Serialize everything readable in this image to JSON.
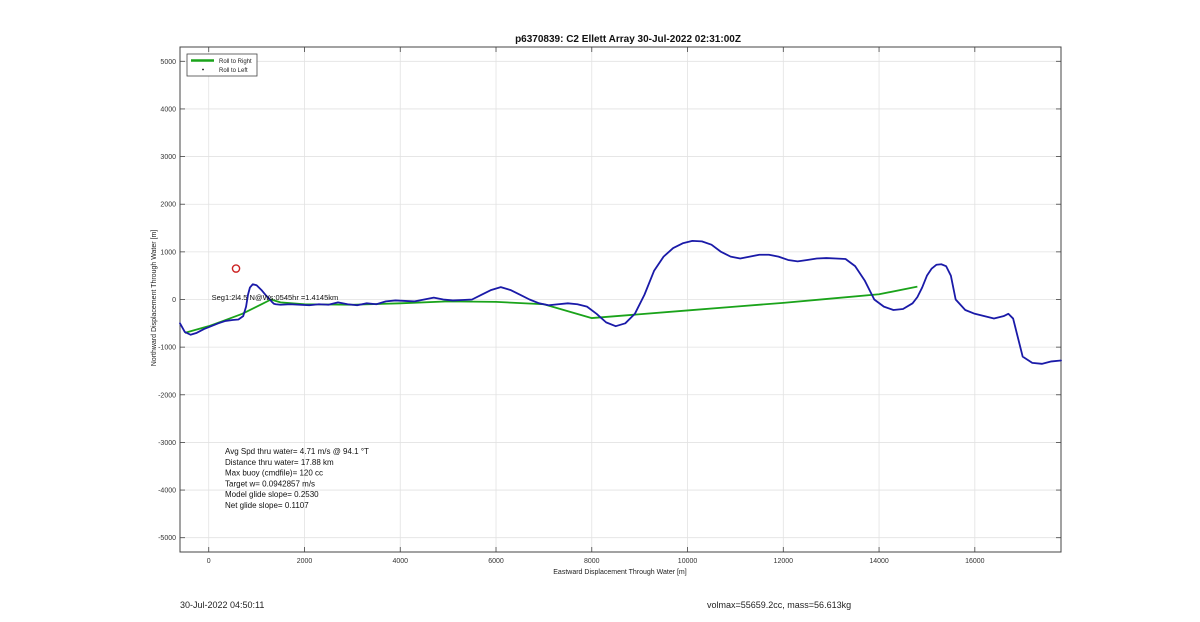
{
  "chart_data": {
    "type": "line",
    "title": "p6370839: C2 Ellett Array 30-Jul-2022 02:31:00Z",
    "xlabel": "Eastward Displacement Through Water [m]",
    "ylabel": "Northward Displacement Through Water [m]",
    "xlim": [
      -600,
      17800
    ],
    "ylim": [
      -5300,
      5300
    ],
    "x_ticks": [
      0,
      2000,
      4000,
      6000,
      8000,
      10000,
      12000,
      14000,
      16000
    ],
    "y_ticks": [
      -5000,
      -4000,
      -3000,
      -2000,
      -1000,
      0,
      1000,
      2000,
      3000,
      4000,
      5000
    ],
    "grid": true,
    "legend_placement": "top-left",
    "legend": [
      {
        "label": "Roll to Right",
        "color": "#1aa31a",
        "style": "line"
      },
      {
        "label": "Roll to Left",
        "color": "#111111",
        "style": "dot"
      }
    ],
    "series": [
      {
        "color": "#1a1aa8",
        "x": [
          -600,
          -500,
          -380,
          -250,
          -100,
          50,
          200,
          350,
          500,
          620,
          720,
          780,
          820,
          860,
          920,
          1000,
          1100,
          1200,
          1280,
          1320,
          1360,
          1400,
          1500,
          1700,
          1900,
          2100,
          2300,
          2500,
          2700,
          2900,
          3100,
          3300,
          3500,
          3700,
          3900,
          4100,
          4300,
          4500,
          4700,
          4900,
          5100,
          5300,
          5500,
          5700,
          5900,
          6100,
          6300,
          6500,
          6700,
          6900,
          7100,
          7300,
          7500,
          7700,
          7900,
          8100,
          8300,
          8500,
          8700,
          8900,
          9100,
          9300,
          9500,
          9700,
          9900,
          10100,
          10300,
          10500,
          10700,
          10900,
          11100,
          11300,
          11500,
          11700,
          11900,
          12100,
          12300,
          12500,
          12700,
          12900,
          13100,
          13300,
          13500,
          13700,
          13900,
          14100,
          14300,
          14500,
          14700,
          14800,
          14900,
          15000,
          15100,
          15200,
          15300,
          15400,
          15500,
          15600,
          15800,
          16000,
          16200,
          16400,
          16600,
          16700,
          16800,
          16900,
          17000,
          17200,
          17400,
          17600,
          17800
        ],
        "y": [
          -500,
          -680,
          -740,
          -700,
          -620,
          -560,
          -500,
          -450,
          -430,
          -420,
          -350,
          -150,
          100,
          250,
          320,
          300,
          200,
          80,
          0,
          -50,
          -90,
          -100,
          -110,
          -100,
          -110,
          -120,
          -100,
          -110,
          -60,
          -100,
          -120,
          -80,
          -100,
          -40,
          -20,
          -30,
          -40,
          0,
          40,
          0,
          -20,
          -10,
          0,
          100,
          200,
          260,
          200,
          100,
          0,
          -80,
          -120,
          -100,
          -80,
          -100,
          -150,
          -300,
          -480,
          -560,
          -500,
          -300,
          100,
          600,
          900,
          1080,
          1180,
          1230,
          1220,
          1150,
          1000,
          900,
          860,
          900,
          940,
          940,
          900,
          830,
          800,
          830,
          860,
          870,
          860,
          850,
          700,
          400,
          0,
          -150,
          -220,
          -200,
          -80,
          50,
          250,
          500,
          650,
          730,
          740,
          700,
          500,
          0,
          -220,
          -300,
          -350,
          -400,
          -350,
          -300,
          -400,
          -800,
          -1200,
          -1330,
          -1350,
          -1300,
          -1280
        ]
      },
      {
        "color": "#1aa31a",
        "x": [
          -500,
          0,
          300,
          700,
          1100,
          1300,
          1500,
          2000,
          3000,
          4000,
          5000,
          6000,
          7000,
          8000,
          9000,
          10000,
          11000,
          12000,
          13000,
          14000,
          14800
        ],
        "y": [
          -700,
          -560,
          -450,
          -300,
          -100,
          0,
          -60,
          -100,
          -110,
          -80,
          -40,
          -50,
          -100,
          -390,
          -310,
          -230,
          -150,
          -70,
          20,
          110,
          270
        ]
      }
    ],
    "start_marker": {
      "x": 570,
      "y": 650,
      "color": "#cc2222"
    },
    "annotations": {
      "overlay_text": "Seg1:2l4.5 N@Ws:0545hr =1.4145km",
      "stats": [
        "Avg Spd thru water=  4.71 m/s @  94.1 °T",
        "Distance thru water= 17.88 km",
        "Max buoy (cmdfile)= 120 cc",
        "Target w= 0.0942857 m/s",
        "Model glide slope= 0.2530",
        "Net glide slope= 0.1107"
      ]
    }
  },
  "footer": {
    "left": "30-Jul-2022 04:50:11",
    "right": "volmax=55659.2cc, mass=56.613kg"
  }
}
